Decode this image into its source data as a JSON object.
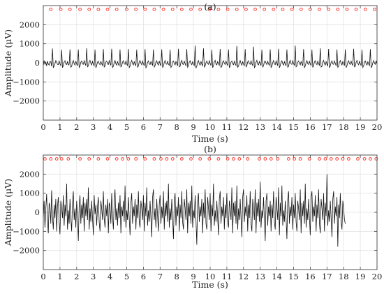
{
  "chart_data": [
    {
      "type": "line",
      "title": "(a)",
      "xlabel": "Time (s)",
      "ylabel": "Amplitude (μV)",
      "xlim": [
        0,
        20
      ],
      "ylim": [
        -3000,
        3000
      ],
      "xticks": [
        0,
        1,
        2,
        3,
        4,
        5,
        6,
        7,
        8,
        9,
        10,
        11,
        12,
        13,
        14,
        15,
        16,
        17,
        18,
        19,
        20
      ],
      "yticks": [
        -2000,
        -1000,
        0,
        1000,
        2000
      ],
      "ytick_labels": [
        "−2000",
        "−1000",
        "0",
        "1000",
        "2000"
      ],
      "grid": true,
      "marker_color": "#ff3b30",
      "marker_y": 2800,
      "marker_times": [
        0.45,
        1.05,
        1.6,
        2.2,
        2.75,
        3.3,
        3.85,
        4.4,
        5.0,
        5.55,
        6.1,
        6.65,
        7.2,
        7.75,
        8.3,
        8.85,
        9.4,
        9.95,
        10.5,
        11.05,
        11.6,
        12.15,
        12.7,
        13.25,
        13.8,
        14.35,
        14.9,
        15.45,
        16.0,
        16.55,
        17.1,
        17.65,
        18.2,
        18.75,
        19.3,
        19.85
      ],
      "series": [
        {
          "color": "#111111",
          "x_start": 0,
          "x_step": 0.05,
          "y": [
            -150,
            120,
            -80,
            40,
            -160,
            90,
            -60,
            -120,
            80,
            60,
            -180,
            750,
            -260,
            -160,
            -40,
            120,
            60,
            -80,
            -100,
            90,
            -60,
            -140,
            690,
            -250,
            -150,
            40,
            110,
            -50,
            -90,
            60,
            -120,
            -80,
            710,
            -230,
            -180,
            20,
            120,
            -40,
            -120,
            90,
            -60,
            -150,
            700,
            -240,
            -170,
            30,
            100,
            -60,
            -80,
            110,
            -40,
            -140,
            760,
            -210,
            -160,
            60,
            130,
            -20,
            -110,
            80,
            -70,
            -150,
            690,
            -260,
            -140,
            40,
            90,
            -40,
            -100,
            70,
            -40,
            -160,
            720,
            -220,
            -160,
            50,
            100,
            -60,
            -90,
            110,
            -30,
            -130,
            740,
            -240,
            -180,
            10,
            120,
            -50,
            -120,
            80,
            -80,
            -140,
            700,
            -210,
            -150,
            40,
            110,
            -40,
            -80,
            90,
            -60,
            -150,
            730,
            -250,
            -170,
            20,
            130,
            -30,
            -110,
            60,
            -70,
            -140,
            690,
            -230,
            -160,
            50,
            120,
            -20,
            -100,
            90,
            -50,
            -150,
            720,
            -260,
            -180,
            30,
            100,
            -60,
            -90,
            70,
            -40,
            -140,
            700,
            -220,
            -140,
            40,
            110,
            -50,
            -120,
            100,
            -60,
            -150,
            710,
            -250,
            -160,
            20,
            120,
            -40,
            -80,
            80,
            -70,
            -130,
            690,
            -240,
            -170,
            60,
            100,
            -30,
            -110,
            70,
            -50,
            -150,
            740,
            -210,
            -180,
            30,
            130,
            -60,
            -90,
            90,
            -40,
            -160,
            720,
            -230,
            -150,
            50,
            110,
            -20,
            -100,
            60,
            -60,
            -140,
            900,
            -280,
            -170,
            40,
            120,
            -50,
            -120,
            80,
            -70,
            -150,
            760,
            -220,
            -160,
            10,
            100,
            -40,
            -80,
            110,
            -30,
            -140,
            690,
            -250,
            -150,
            60,
            130,
            -60,
            -110,
            70,
            -50,
            -130,
            730,
            -240,
            -180,
            30,
            110,
            -20,
            -90,
            90,
            -40,
            -150,
            700,
            -260,
            -160,
            40,
            100,
            -50,
            -100,
            80,
            -60,
            -140,
            880,
            -230,
            -170,
            20,
            120,
            -30,
            -120,
            60,
            -70,
            -160,
            720,
            -210,
            -150,
            50,
            110,
            -40,
            -80,
            100,
            -50,
            -150,
            850,
            -250,
            -180,
            30,
            130,
            -60,
            -110,
            70,
            -40,
            -140,
            690,
            -220,
            -160,
            60,
            100,
            -20,
            -90,
            80,
            -60,
            -130,
            710,
            -240,
            -170,
            10,
            120,
            -50,
            -100,
            90,
            -30,
            -150,
            740,
            -260,
            -150,
            40,
            110,
            -40,
            -120,
            60,
            -70,
            -160,
            700,
            -230,
            -180,
            50,
            130,
            -60,
            -80,
            110,
            -40,
            -140,
            900,
            -210,
            -160,
            30,
            100,
            -20,
            -110,
            70,
            -50,
            -150,
            720,
            -250,
            -170,
            20,
            120,
            -40,
            -90,
            80,
            -60,
            -130,
            690,
            -240,
            -150,
            60,
            110,
            -30,
            -100,
            90,
            -40,
            -140,
            760,
            -220,
            -180,
            40,
            130,
            -50,
            -120,
            60,
            -70,
            -150,
            730,
            -260,
            -160,
            30,
            100,
            -60,
            -80,
            100,
            -30,
            -160,
            700,
            -230,
            -170,
            50,
            120,
            -20,
            -110,
            70,
            -50,
            -140,
            710,
            -250,
            -150,
            20,
            110,
            -40,
            -90,
            90,
            -60,
            -130,
            740,
            -210,
            -180,
            40,
            130,
            -30,
            -100,
            80,
            -40,
            -150,
            690,
            -240,
            -160,
            60,
            100,
            -50,
            -120,
            60,
            -70,
            -140,
            720,
            -260,
            -170,
            10,
            120,
            -20,
            -80,
            110,
            -50,
            -150,
            700,
            -230,
            -150,
            40,
            110,
            -60,
            -260,
            -180,
            -150,
            -200
          ]
        }
      ]
    },
    {
      "type": "line",
      "title": "(b)",
      "xlabel": "Time (s)",
      "ylabel": "Amplitude (μV)",
      "xlim": [
        0,
        20
      ],
      "ylim": [
        -3000,
        3000
      ],
      "xticks": [
        0,
        1,
        2,
        3,
        4,
        5,
        6,
        7,
        8,
        9,
        10,
        11,
        12,
        13,
        14,
        15,
        16,
        17,
        18,
        19,
        20
      ],
      "yticks": [
        -2000,
        -1000,
        0,
        1000,
        2000
      ],
      "ytick_labels": [
        "−2000",
        "−1000",
        "0",
        "1000",
        "2000"
      ],
      "grid": true,
      "marker_color": "#ff3b30",
      "marker_y": 2800,
      "marker_times": [
        0.1,
        0.45,
        0.8,
        1.1,
        1.5,
        2.2,
        2.75,
        3.3,
        3.85,
        4.4,
        4.75,
        5.1,
        5.55,
        6.1,
        6.65,
        7.05,
        7.4,
        7.75,
        8.3,
        8.85,
        9.4,
        9.95,
        10.5,
        11.05,
        11.4,
        11.75,
        12.25,
        12.95,
        13.3,
        13.65,
        14.05,
        14.7,
        15.05,
        15.4,
        15.95,
        16.55,
        16.9,
        17.25,
        17.6,
        17.95,
        18.3,
        18.85,
        19.25,
        19.6,
        19.95
      ],
      "series": [
        {
          "color": "#111111",
          "x_start": 0,
          "x_step": 0.05,
          "y": [
            -300,
            600,
            -800,
            200,
            950,
            -400,
            -1100,
            500,
            300,
            -600,
            1150,
            -200,
            -900,
            400,
            -300,
            700,
            -1000,
            300,
            800,
            -500,
            -1150,
            600,
            200,
            -300,
            900,
            -700,
            400,
            -200,
            1500,
            -900,
            100,
            -600,
            700,
            -300,
            -1000,
            500,
            1100,
            -400,
            200,
            -800,
            600,
            -200,
            -1500,
            300,
            900,
            -600,
            400,
            -300,
            800,
            -1000,
            500,
            -200,
            700,
            -400,
            1300,
            -900,
            200,
            -500,
            600,
            -300,
            -1200,
            900,
            -100,
            400,
            -700,
            300,
            800,
            -500,
            -1000,
            600,
            200,
            -400,
            1100,
            -300,
            -800,
            400,
            -200,
            700,
            -1100,
            500,
            300,
            -600,
            1000,
            -200,
            -900,
            600,
            1200,
            -400,
            200,
            -700,
            500,
            -300,
            900,
            -1100,
            300,
            -200,
            600,
            -500,
            1400,
            -800,
            100,
            -400,
            800,
            -300,
            -1200,
            500,
            1000,
            -600,
            300,
            -200,
            700,
            -900,
            400,
            -300,
            1100,
            -500,
            -800,
            600,
            200,
            -400,
            900,
            -1000,
            500,
            -200,
            1300,
            -700,
            100,
            -500,
            600,
            -300,
            -1300,
            800,
            1200,
            -400,
            200,
            -800,
            700,
            -200,
            -1000,
            400,
            900,
            -600,
            300,
            -300,
            1100,
            -900,
            500,
            -200,
            600,
            -500,
            1500,
            -800,
            200,
            -400,
            700,
            -300,
            -1400,
            600,
            1000,
            -700,
            300,
            -200,
            800,
            -1000,
            400,
            -300,
            1100,
            -500,
            -900,
            700,
            200,
            -400,
            1200,
            -1100,
            500,
            -200,
            600,
            -600,
            1400,
            -800,
            100,
            -300,
            900,
            -400,
            -1700,
            600,
            1000,
            -500,
            300,
            -200,
            700,
            -1100,
            500,
            -300,
            1200,
            -600,
            -900,
            800,
            200,
            -400,
            1000,
            -1000,
            400,
            -200,
            1500,
            -700,
            100,
            -500,
            600,
            -300,
            -1200,
            700,
            1100,
            -600,
            300,
            -200,
            800,
            -900,
            400,
            -300,
            1000,
            -500,
            -800,
            600,
            200,
            -400,
            1300,
            -1100,
            500,
            -200,
            600,
            -600,
            1400,
            -900,
            200,
            -400,
            700,
            -300,
            -1300,
            800,
            1200,
            -500,
            300,
            -200,
            900,
            -1000,
            400,
            -300,
            1100,
            -600,
            -1000,
            700,
            200,
            -400,
            1200,
            -1100,
            500,
            -200,
            700,
            -500,
            1600,
            -800,
            100,
            -300,
            800,
            -400,
            -1500,
            600,
            1000,
            -700,
            300,
            -200,
            600,
            -1000,
            400,
            -300,
            1100,
            -500,
            -900,
            800,
            200,
            -400,
            1300,
            -1200,
            500,
            -200,
            1400,
            -700,
            100,
            -500,
            600,
            -300,
            -1400,
            700,
            1100,
            -600,
            300,
            -200,
            800,
            -900,
            400,
            -300,
            1000,
            -500,
            -1000,
            600,
            200,
            -400,
            1200,
            -1100,
            500,
            -200,
            600,
            -600,
            1500,
            -800,
            200,
            -400,
            700,
            -300,
            -1200,
            800,
            1100,
            -500,
            300,
            -200,
            900,
            -1000,
            400,
            -300,
            1200,
            -600,
            -1100,
            700,
            200,
            -400,
            1000,
            -1000,
            500,
            -200,
            2000,
            -700,
            100,
            -500,
            600,
            -300,
            -1300,
            700,
            1100,
            -600,
            300,
            -200,
            800,
            -1800,
            400,
            -300,
            1000,
            -500,
            -900,
            600,
            200,
            -400,
            -600
          ]
        }
      ]
    }
  ]
}
